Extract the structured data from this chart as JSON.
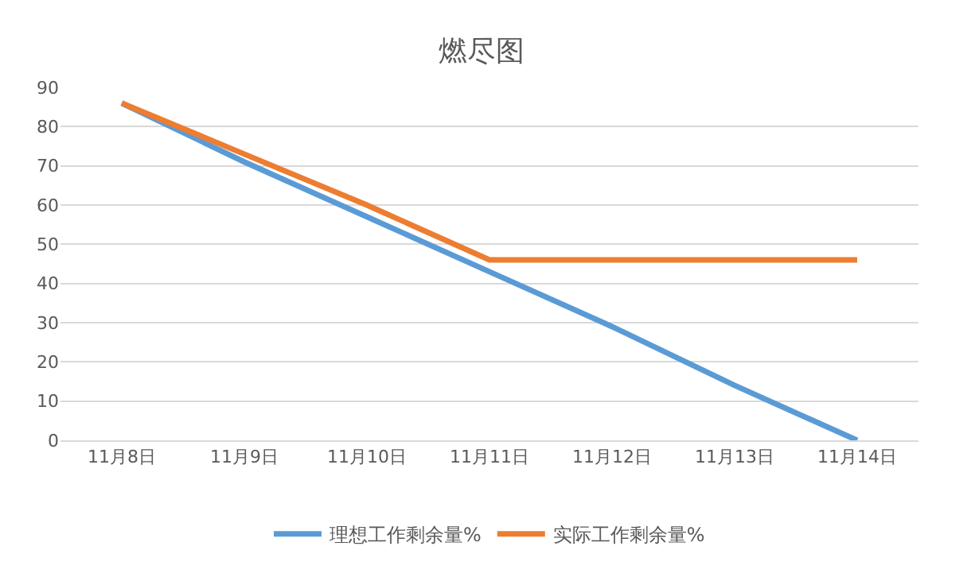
{
  "chart_data": {
    "type": "line",
    "title": "燃尽图",
    "categories": [
      "11月8日",
      "11月9日",
      "11月10日",
      "11月11日",
      "11月12日",
      "11月13日",
      "11月14日"
    ],
    "series": [
      {
        "name": "理想工作剩余量%",
        "color": "#5b9bd5",
        "values": [
          86,
          71,
          57,
          43,
          29,
          14,
          0
        ]
      },
      {
        "name": "实际工作剩余量%",
        "color": "#ed7d31",
        "values": [
          86,
          73,
          60,
          46,
          46,
          46,
          46
        ]
      }
    ],
    "ylim": [
      0,
      90
    ],
    "yticks": [
      0,
      10,
      20,
      30,
      40,
      50,
      60,
      70,
      80,
      90
    ],
    "grid": "y",
    "legend": "bottom",
    "marker": "none",
    "line_style": "solid"
  }
}
